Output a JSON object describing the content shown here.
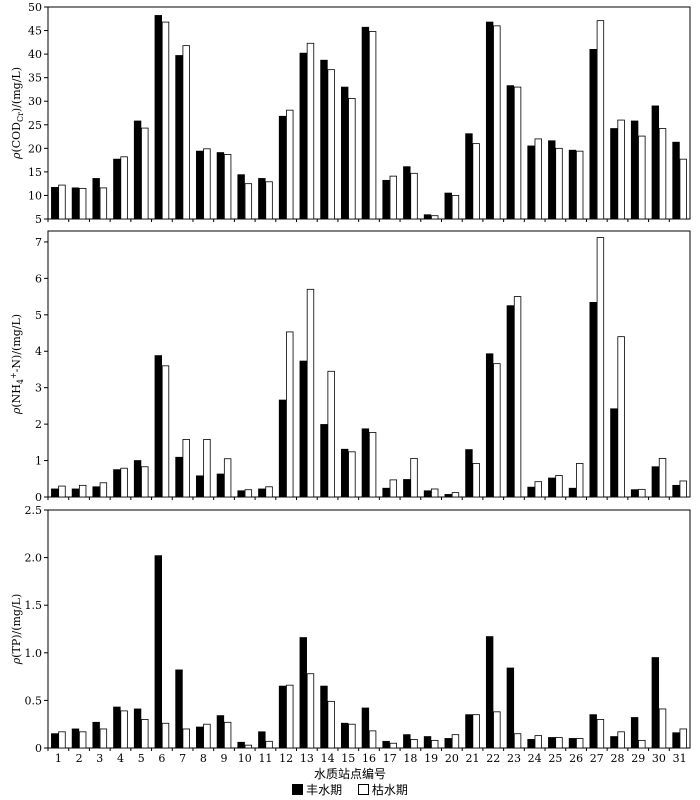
{
  "chart_data": [
    {
      "type": "bar",
      "ylabel_parts": [
        "ρ",
        "(COD",
        "Cr",
        ")/(mg/L)"
      ],
      "ylim": [
        5,
        50
      ],
      "yticks": [
        5,
        10,
        15,
        20,
        25,
        30,
        35,
        40,
        45,
        50
      ],
      "categories": [
        "1",
        "2",
        "3",
        "4",
        "5",
        "6",
        "7",
        "8",
        "9",
        "10",
        "11",
        "12",
        "13",
        "14",
        "15",
        "16",
        "17",
        "18",
        "19",
        "20",
        "21",
        "22",
        "23",
        "24",
        "25",
        "26",
        "27",
        "28",
        "29",
        "30",
        "31"
      ],
      "series": [
        {
          "name": "丰水期",
          "values": [
            11.7,
            11.6,
            13.6,
            17.7,
            25.8,
            48.2,
            39.7,
            19.4,
            19.1,
            14.4,
            13.6,
            26.8,
            40.2,
            38.7,
            33.0,
            45.7,
            13.2,
            16.1,
            5.9,
            10.5,
            23.1,
            46.8,
            33.3,
            20.5,
            21.6,
            19.6,
            41.0,
            24.2,
            25.8,
            29.0,
            21.3
          ]
        },
        {
          "name": "枯水期",
          "values": [
            12.2,
            11.5,
            11.6,
            18.2,
            24.3,
            46.8,
            41.8,
            19.9,
            18.7,
            12.5,
            12.9,
            28.1,
            42.3,
            36.7,
            30.6,
            44.8,
            14.1,
            14.7,
            5.7,
            10.0,
            21.0,
            46.0,
            33.0,
            22.0,
            20.0,
            19.4,
            47.1,
            26.0,
            22.6,
            24.2,
            17.7
          ]
        }
      ]
    },
    {
      "type": "bar",
      "ylabel_parts": [
        "ρ",
        "(NH",
        "4",
        "+",
        "-N)/(mg/L)"
      ],
      "ylim": [
        0,
        7.3
      ],
      "yticks": [
        0,
        1,
        2,
        3,
        4,
        5,
        6,
        7
      ],
      "categories": [
        "1",
        "2",
        "3",
        "4",
        "5",
        "6",
        "7",
        "8",
        "9",
        "10",
        "11",
        "12",
        "13",
        "14",
        "15",
        "16",
        "17",
        "18",
        "19",
        "20",
        "21",
        "22",
        "23",
        "24",
        "25",
        "26",
        "27",
        "28",
        "29",
        "30",
        "31"
      ],
      "series": [
        {
          "name": "丰水期",
          "values": [
            0.22,
            0.22,
            0.28,
            0.75,
            1.0,
            3.88,
            1.09,
            0.58,
            0.63,
            0.17,
            0.22,
            2.66,
            3.73,
            1.99,
            1.31,
            1.87,
            0.24,
            0.48,
            0.17,
            0.07,
            1.3,
            3.93,
            5.25,
            0.27,
            0.52,
            0.24,
            5.34,
            2.42,
            0.2,
            0.83,
            0.32
          ]
        },
        {
          "name": "枯水期",
          "values": [
            0.3,
            0.32,
            0.39,
            0.79,
            0.83,
            3.6,
            1.58,
            1.58,
            1.05,
            0.2,
            0.28,
            4.53,
            5.7,
            3.45,
            1.24,
            1.77,
            0.47,
            1.06,
            0.22,
            0.12,
            0.92,
            3.66,
            5.5,
            0.42,
            0.59,
            0.92,
            7.12,
            4.4,
            0.21,
            1.06,
            0.44
          ]
        }
      ]
    },
    {
      "type": "bar",
      "ylabel_parts": [
        "ρ",
        "(TP)/(mg/L)"
      ],
      "ylim": [
        0,
        2.5
      ],
      "yticks": [
        0,
        0.5,
        1.0,
        1.5,
        2.0,
        2.5
      ],
      "ytick_labels": [
        "0",
        "0.5",
        "1.0",
        "1.5",
        "2.0",
        "2.5"
      ],
      "categories": [
        "1",
        "2",
        "3",
        "4",
        "5",
        "6",
        "7",
        "8",
        "9",
        "10",
        "11",
        "12",
        "13",
        "14",
        "15",
        "16",
        "17",
        "18",
        "19",
        "20",
        "21",
        "22",
        "23",
        "24",
        "25",
        "26",
        "27",
        "28",
        "29",
        "30",
        "31"
      ],
      "series": [
        {
          "name": "丰水期",
          "values": [
            0.15,
            0.2,
            0.27,
            0.43,
            0.41,
            2.02,
            0.82,
            0.22,
            0.34,
            0.06,
            0.17,
            0.65,
            1.16,
            0.65,
            0.26,
            0.42,
            0.07,
            0.14,
            0.12,
            0.1,
            0.35,
            1.17,
            0.84,
            0.09,
            0.11,
            0.1,
            0.35,
            0.12,
            0.32,
            0.95,
            0.16
          ]
        },
        {
          "name": "枯水期",
          "values": [
            0.17,
            0.17,
            0.2,
            0.39,
            0.3,
            0.26,
            0.2,
            0.25,
            0.27,
            0.03,
            0.07,
            0.66,
            0.78,
            0.49,
            0.25,
            0.18,
            0.05,
            0.09,
            0.08,
            0.14,
            0.35,
            0.38,
            0.15,
            0.13,
            0.11,
            0.1,
            0.3,
            0.17,
            0.08,
            0.41,
            0.2
          ]
        }
      ]
    }
  ],
  "xlabel": "水质站点编号",
  "legend": [
    {
      "label": "丰水期",
      "color": "#000000"
    },
    {
      "label": "枯水期",
      "color": "#ffffff"
    }
  ]
}
